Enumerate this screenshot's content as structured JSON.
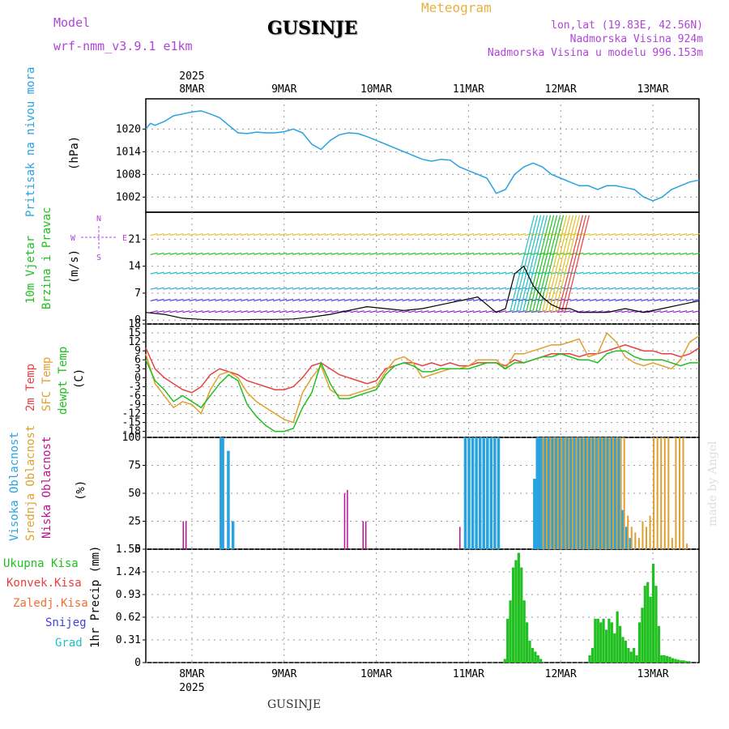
{
  "header": {
    "model_label": "Model",
    "model_name": "wrf-nmm_v3.9.1 e1km",
    "station": "GUSINJE",
    "meteogram": "Meteogram",
    "location": "lon,lat (19.83E, 42.56N)",
    "elevation": "Nadmorska Visina 924m",
    "model_elevation": "Nadmorska Visina u modelu 996.153m"
  },
  "footer": {
    "station": "GUSINJE",
    "watermark": "made by Angel"
  },
  "colors": {
    "pressure": "#29a3e0",
    "temp2m": "#e84040",
    "sfc": "#e0a030",
    "dew": "#20c020",
    "high_cloud": "#29a3e0",
    "mid_cloud": "#e0a030",
    "low_cloud": "#c01090",
    "precip": "#20c020",
    "purple": "#b044d8"
  },
  "chart_data": [
    {
      "type": "line",
      "panel": "pressure",
      "ylabel_lines": [
        "Pritisak na nivou mora",
        "(hPa)"
      ],
      "ylim": [
        998,
        1028
      ],
      "yticks": [
        1002,
        1008,
        1014,
        1020
      ],
      "x_top": {
        "year": "2025",
        "dates": [
          "8MAR",
          "9MAR",
          "10MAR",
          "11MAR",
          "12MAR",
          "13MAR"
        ]
      },
      "x_day_start": -0.5,
      "x_day_end": 5.5,
      "series": [
        {
          "x": [
            -0.5,
            -0.45,
            -0.4,
            -0.3,
            -0.2,
            -0.1,
            0,
            0.1,
            0.2,
            0.3,
            0.4,
            0.5,
            0.6,
            0.7,
            0.8,
            0.9,
            1.0,
            1.1,
            1.2,
            1.3,
            1.4,
            1.5,
            1.6,
            1.7,
            1.8,
            1.9,
            2.0,
            2.1,
            2.2,
            2.3,
            2.4,
            2.5,
            2.6,
            2.7,
            2.8,
            2.9,
            3.0,
            3.1,
            3.2,
            3.3,
            3.4,
            3.5,
            3.6,
            3.7,
            3.8,
            3.9,
            4.0,
            4.1,
            4.2,
            4.3,
            4.4,
            4.5,
            4.6,
            4.7,
            4.8,
            4.9,
            5.0,
            5.1,
            5.2,
            5.3,
            5.4,
            5.5
          ],
          "values": [
            1020,
            1021.5,
            1021,
            1022,
            1023.5,
            1024,
            1024.5,
            1024.8,
            1024,
            1023,
            1021,
            1019,
            1018.8,
            1019.2,
            1019.0,
            1019.0,
            1019.3,
            1020,
            1019,
            1016,
            1014.6,
            1017,
            1018.5,
            1019,
            1018.8,
            1018,
            1017,
            1016,
            1015,
            1014,
            1013,
            1012,
            1011.5,
            1012,
            1011.8,
            1010,
            1009,
            1008,
            1007,
            1003,
            1004,
            1008,
            1010,
            1011,
            1010,
            1008,
            1007,
            1006,
            1005,
            1005,
            1004,
            1005,
            1005,
            1004.5,
            1004,
            1002,
            1001,
            1002,
            1004,
            1005,
            1006,
            1006.5
          ]
        }
      ]
    },
    {
      "type": "line",
      "panel": "wind",
      "ylabel_lines": [
        "10m Vjetar",
        "Brzina i Pravac",
        "(m/s)"
      ],
      "compass": [
        "N",
        "W",
        "E",
        "S"
      ],
      "ylim": [
        -1,
        28
      ],
      "yticks": [
        0,
        7,
        14,
        21
      ],
      "series": [
        {
          "name": "wind speed",
          "x": [
            -0.5,
            -0.3,
            -0.1,
            0.1,
            0.3,
            0.5,
            0.7,
            0.9,
            1.1,
            1.3,
            1.5,
            1.7,
            1.9,
            2.1,
            2.3,
            2.5,
            2.7,
            2.9,
            3.1,
            3.2,
            3.3,
            3.4,
            3.5,
            3.6,
            3.7,
            3.8,
            3.9,
            4.0,
            4.1,
            4.2,
            4.3,
            4.5,
            4.7,
            4.9,
            5.1,
            5.3,
            5.5
          ],
          "values": [
            2,
            1.5,
            0.5,
            0.2,
            0.1,
            0.1,
            0.2,
            0.2,
            0.3,
            0.8,
            1.5,
            2.5,
            3.5,
            3,
            2.5,
            3,
            4,
            5,
            6,
            4,
            2,
            3,
            12,
            14,
            9,
            6,
            4,
            3,
            3,
            2,
            2,
            2,
            3,
            2,
            3,
            4,
            5
          ]
        }
      ]
    },
    {
      "type": "line",
      "panel": "temperature",
      "ylabel_lines": [
        "2m Temp",
        "SFC Temp",
        "dewpt Temp",
        "(C)"
      ],
      "ylim": [
        -20,
        18
      ],
      "yticks": [
        -18,
        -15,
        -12,
        -9,
        -6,
        -3,
        0,
        3,
        6,
        9,
        12,
        15,
        18
      ],
      "x": [
        -0.5,
        -0.4,
        -0.3,
        -0.2,
        -0.1,
        0,
        0.1,
        0.2,
        0.3,
        0.4,
        0.5,
        0.6,
        0.7,
        0.8,
        0.9,
        1.0,
        1.1,
        1.2,
        1.3,
        1.4,
        1.5,
        1.6,
        1.7,
        1.8,
        1.9,
        2.0,
        2.1,
        2.2,
        2.3,
        2.4,
        2.5,
        2.6,
        2.7,
        2.8,
        2.9,
        3.0,
        3.1,
        3.2,
        3.3,
        3.4,
        3.5,
        3.6,
        3.7,
        3.8,
        3.9,
        4.0,
        4.1,
        4.2,
        4.3,
        4.4,
        4.5,
        4.6,
        4.7,
        4.8,
        4.9,
        5.0,
        5.1,
        5.2,
        5.3,
        5.4,
        5.5
      ],
      "series": [
        {
          "name": "2m Temp",
          "values": [
            10,
            3,
            0,
            -2,
            -4,
            -5,
            -3,
            1,
            3,
            2,
            1,
            -1,
            -2,
            -3,
            -4,
            -4,
            -3,
            0,
            4,
            5,
            3,
            1,
            0,
            -1,
            -2,
            -1,
            3,
            4,
            5,
            5,
            4,
            5,
            4,
            5,
            4,
            4,
            5,
            5,
            5,
            4,
            6,
            5,
            6,
            7,
            8,
            8,
            8,
            7,
            8,
            8,
            9,
            10,
            11,
            10,
            9,
            9,
            8,
            8,
            7,
            8,
            10
          ]
        },
        {
          "name": "SFC Temp",
          "values": [
            8,
            -2,
            -6,
            -10,
            -8,
            -9,
            -12,
            -4,
            1,
            2,
            0,
            -5,
            -8,
            -10,
            -12,
            -14,
            -15,
            -5,
            0,
            4,
            -4,
            -6,
            -6,
            -5,
            -4,
            -3,
            2,
            6,
            7,
            5,
            0,
            1,
            2,
            3,
            3,
            4,
            6,
            6,
            6,
            3,
            8,
            8,
            9,
            10,
            11,
            11,
            12,
            13,
            7,
            8,
            15,
            12,
            7,
            5,
            4,
            5,
            4,
            3,
            6,
            12,
            14
          ]
        },
        {
          "name": "dewpt Temp",
          "values": [
            6,
            -1,
            -4,
            -8,
            -6,
            -8,
            -10,
            -6,
            -2,
            1,
            -1,
            -9,
            -13,
            -16,
            -18,
            -18,
            -17,
            -10,
            -5,
            5,
            -2,
            -7,
            -7,
            -6,
            -5,
            -4,
            1,
            4,
            5,
            4,
            2,
            2,
            3,
            3,
            3,
            3,
            4,
            5,
            5,
            3,
            5,
            5,
            6,
            7,
            7,
            8,
            7,
            6,
            6,
            5,
            8,
            9,
            9,
            7,
            6,
            6,
            6,
            5,
            4,
            5,
            5
          ]
        }
      ]
    },
    {
      "type": "bar",
      "panel": "clouds",
      "ylabel_lines": [
        "Visoka Oblacnost",
        "Srednja Oblacnost",
        "Niska Oblacnost",
        "(%)"
      ],
      "ylim": [
        0,
        100
      ],
      "yticks": [
        0,
        25,
        50,
        75,
        100
      ],
      "series": [
        {
          "name": "Visoka Oblacnost",
          "x": [
            0.3,
            0.32,
            0.38,
            0.43,
            2.95,
            2.99,
            3.03,
            3.07,
            3.11,
            3.15,
            3.19,
            3.23,
            3.27,
            3.31,
            3.7,
            3.73,
            3.76,
            3.79,
            3.82,
            3.85,
            3.88,
            3.91,
            3.94,
            3.97,
            4.0,
            4.03,
            4.06,
            4.09,
            4.12,
            4.15,
            4.18,
            4.21,
            4.24,
            4.27,
            4.3,
            4.33,
            4.36,
            4.39,
            4.42,
            4.45,
            4.48,
            4.51,
            4.54,
            4.57,
            4.6,
            4.63,
            4.66,
            4.7,
            4.74
          ],
          "values": [
            100,
            100,
            88,
            25,
            100,
            100,
            100,
            100,
            100,
            100,
            100,
            100,
            100,
            100,
            63,
            100,
            100,
            100,
            100,
            100,
            100,
            100,
            100,
            100,
            100,
            100,
            100,
            100,
            100,
            100,
            100,
            100,
            100,
            100,
            100,
            100,
            100,
            100,
            100,
            100,
            100,
            100,
            100,
            100,
            100,
            100,
            35,
            20,
            10
          ]
        },
        {
          "name": "Srednja Oblacnost",
          "x": [
            3.8,
            3.84,
            3.88,
            3.92,
            3.96,
            4.0,
            4.04,
            4.08,
            4.12,
            4.16,
            4.2,
            4.24,
            4.28,
            4.32,
            4.36,
            4.4,
            4.44,
            4.48,
            4.52,
            4.56,
            4.6,
            4.64,
            4.68,
            4.72,
            4.76,
            4.8,
            4.84,
            4.88,
            4.92,
            4.96,
            5.0,
            5.04,
            5.08,
            5.12,
            5.16,
            5.2,
            5.24,
            5.28,
            5.32,
            5.36
          ],
          "values": [
            100,
            100,
            100,
            100,
            100,
            100,
            100,
            100,
            100,
            100,
            100,
            100,
            100,
            100,
            100,
            100,
            100,
            100,
            100,
            100,
            100,
            100,
            100,
            30,
            20,
            15,
            10,
            25,
            20,
            30,
            100,
            100,
            100,
            100,
            100,
            10,
            100,
            100,
            100,
            5
          ]
        },
        {
          "name": "Niska Oblacnost",
          "x": [
            -0.1,
            -0.07,
            1.65,
            1.68,
            1.85,
            1.88,
            2.9
          ],
          "values": [
            25,
            25,
            50,
            53,
            25,
            25,
            20
          ]
        }
      ]
    },
    {
      "type": "bar",
      "panel": "precipitation",
      "ylabel_lines": [
        "Ukupna Kisa",
        "Konvek.Kisa",
        "Zaledj.Kisa",
        "Snijeg",
        "Grad",
        "1hr Precip (mm)"
      ],
      "ylim": [
        0,
        1.55
      ],
      "yticks": [
        0,
        0.31,
        0.62,
        0.93,
        1.24,
        1.55
      ],
      "x_bottom": {
        "year": "2025",
        "dates": [
          "8MAR",
          "9MAR",
          "10MAR",
          "11MAR",
          "12MAR",
          "13MAR"
        ]
      },
      "series": [
        {
          "name": "Ukupna Kisa",
          "x": [
            3.38,
            3.41,
            3.44,
            3.47,
            3.5,
            3.53,
            3.56,
            3.59,
            3.62,
            3.65,
            3.68,
            3.71,
            3.74,
            3.77,
            4.3,
            4.33,
            4.36,
            4.39,
            4.42,
            4.45,
            4.48,
            4.51,
            4.54,
            4.57,
            4.6,
            4.63,
            4.66,
            4.69,
            4.72,
            4.75,
            4.78,
            4.81,
            4.84,
            4.87,
            4.9,
            4.93,
            4.96,
            4.99,
            5.02,
            5.05,
            5.08,
            5.11,
            5.14,
            5.17,
            5.2,
            5.23,
            5.26,
            5.29,
            5.32,
            5.35,
            5.38
          ],
          "values": [
            0.05,
            0.6,
            0.85,
            1.3,
            1.4,
            1.5,
            1.3,
            0.85,
            0.55,
            0.3,
            0.2,
            0.15,
            0.1,
            0.05,
            0.1,
            0.2,
            0.6,
            0.6,
            0.55,
            0.6,
            0.45,
            0.6,
            0.55,
            0.4,
            0.7,
            0.5,
            0.35,
            0.3,
            0.2,
            0.15,
            0.2,
            0.1,
            0.55,
            0.75,
            1.05,
            1.1,
            0.9,
            1.35,
            1.05,
            0.5,
            0.1,
            0.1,
            0.09,
            0.08,
            0.06,
            0.05,
            0.04,
            0.03,
            0.03,
            0.02,
            0.02
          ]
        }
      ]
    }
  ],
  "legend_labels": {
    "pressure": "Pritisak na nivou mora",
    "hpa": "(hPa)",
    "wind1": "10m Vjetar",
    "wind2": "Brzina i Pravac",
    "ms": "(m/s)",
    "t2m": "2m Temp",
    "tsfc": "SFC Temp",
    "tdew": "dewpt Temp",
    "degc": "(C)",
    "hcl": "Visoka Oblacnost",
    "mcl": "Srednja Oblacnost",
    "lcl": "Niska Oblacnost",
    "pct": "(%)",
    "rain": "Ukupna Kisa",
    "conv": "Konvek.Kisa",
    "frz": "Zaledj.Kisa",
    "snow": "Snijeg",
    "hail": "Grad",
    "precip": "1hr Precip (mm)"
  }
}
